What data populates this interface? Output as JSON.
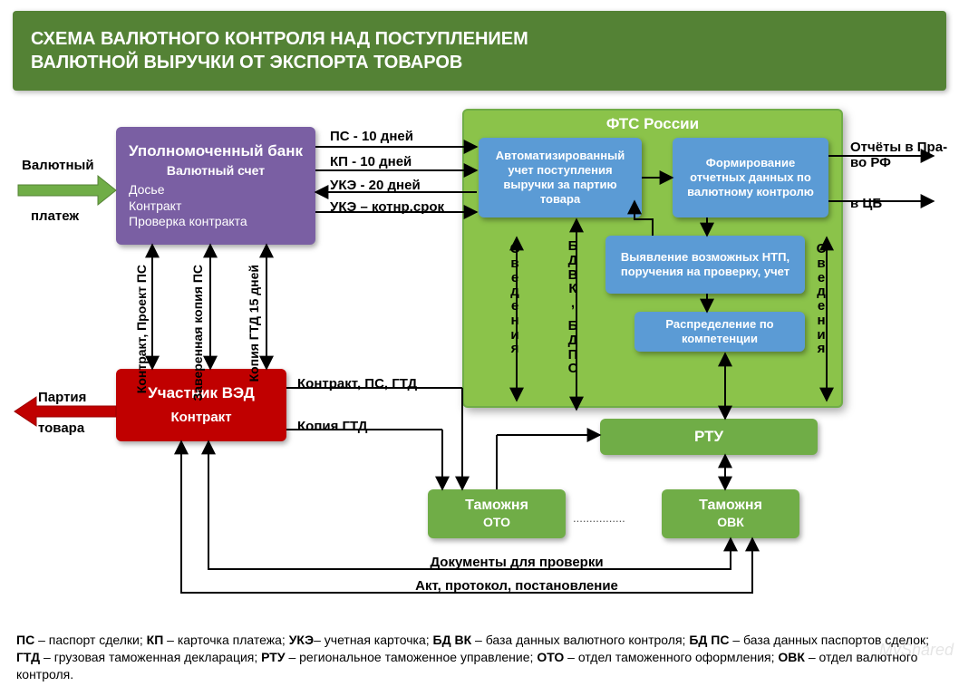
{
  "title_line1": "СХЕМА  ВАЛЮТНОГО  КОНТРОЛЯ  НАД  ПОСТУПЛЕНИЕМ",
  "title_line2": "ВАЛЮТНОЙ  ВЫРУЧКИ  ОТ  ЭКСПОРТА  ТОВАРОВ",
  "left_top_label1": "Валютный",
  "left_top_label2": "платеж",
  "left_mid_label1": "Партия",
  "left_mid_label2": "товара",
  "bank": {
    "title": "Уполномоченный банк",
    "sub": "Валютный счет",
    "l1": "Досье",
    "l2": "Контракт",
    "l3": "Проверка контракта"
  },
  "docs": {
    "ps": "ПС - 10 дней",
    "kp": "КП - 10 дней",
    "uke": "УКЭ - 20 дней",
    "uke2": "УКЭ – котнр.срок"
  },
  "fts": "ФТС России",
  "auto_acc": "Автоматизированный учет поступления выручки за партию товара",
  "form_rep": "Формирование отчетных данных по валютному контролю",
  "detect": "Выявление возможных НТП, поручения на проверку, учет",
  "distrib": "Распределение по компетенции",
  "rtu": "РТУ",
  "oto": "Таможня",
  "oto2": "ОТО",
  "ovk": "Таможня",
  "ovk2": "ОВК",
  "right1": "Отчёты в Пра-во РФ",
  "right2": "в ЦБ",
  "mid_labels": {
    "svedeniya": "Сведения",
    "bdvk": "БДВК,",
    "bdps": "БДПС"
  },
  "bank_to_ved": {
    "a": "Контракт, Проект ПС",
    "b": "Заверенная копия ПС",
    "c": "Копия ГТД 15 дней"
  },
  "ved": "Участник ВЭД",
  "ved_sub": "Контракт",
  "ved_right1": "Контракт, ПС, ГТД",
  "ved_right2": "Копия ГТД",
  "bottom1": "Документы для проверки",
  "bottom2": "Акт, протокол, постановление",
  "dots": "................",
  "foot": "ПС – паспорт сделки; КП – карточка платежа; УКЭ– учетная карточка; БД ВК – база данных валютного контроля; БД ПС – база данных паспортов сделок; ГТД – грузовая таможенная декларация; РТУ – региональное таможенное управление; ОТО – отдел таможенного оформления; ОВК – отдел валютного контроля.",
  "colors": {
    "purple": "#7a5fa3",
    "red": "#c00000",
    "green": "#70ad47",
    "biggreen": "#8bc34a",
    "blue": "#5b9bd5",
    "arrow": "#000000",
    "arrow_red": "#c00000",
    "arrow_green": "#70ad47"
  }
}
